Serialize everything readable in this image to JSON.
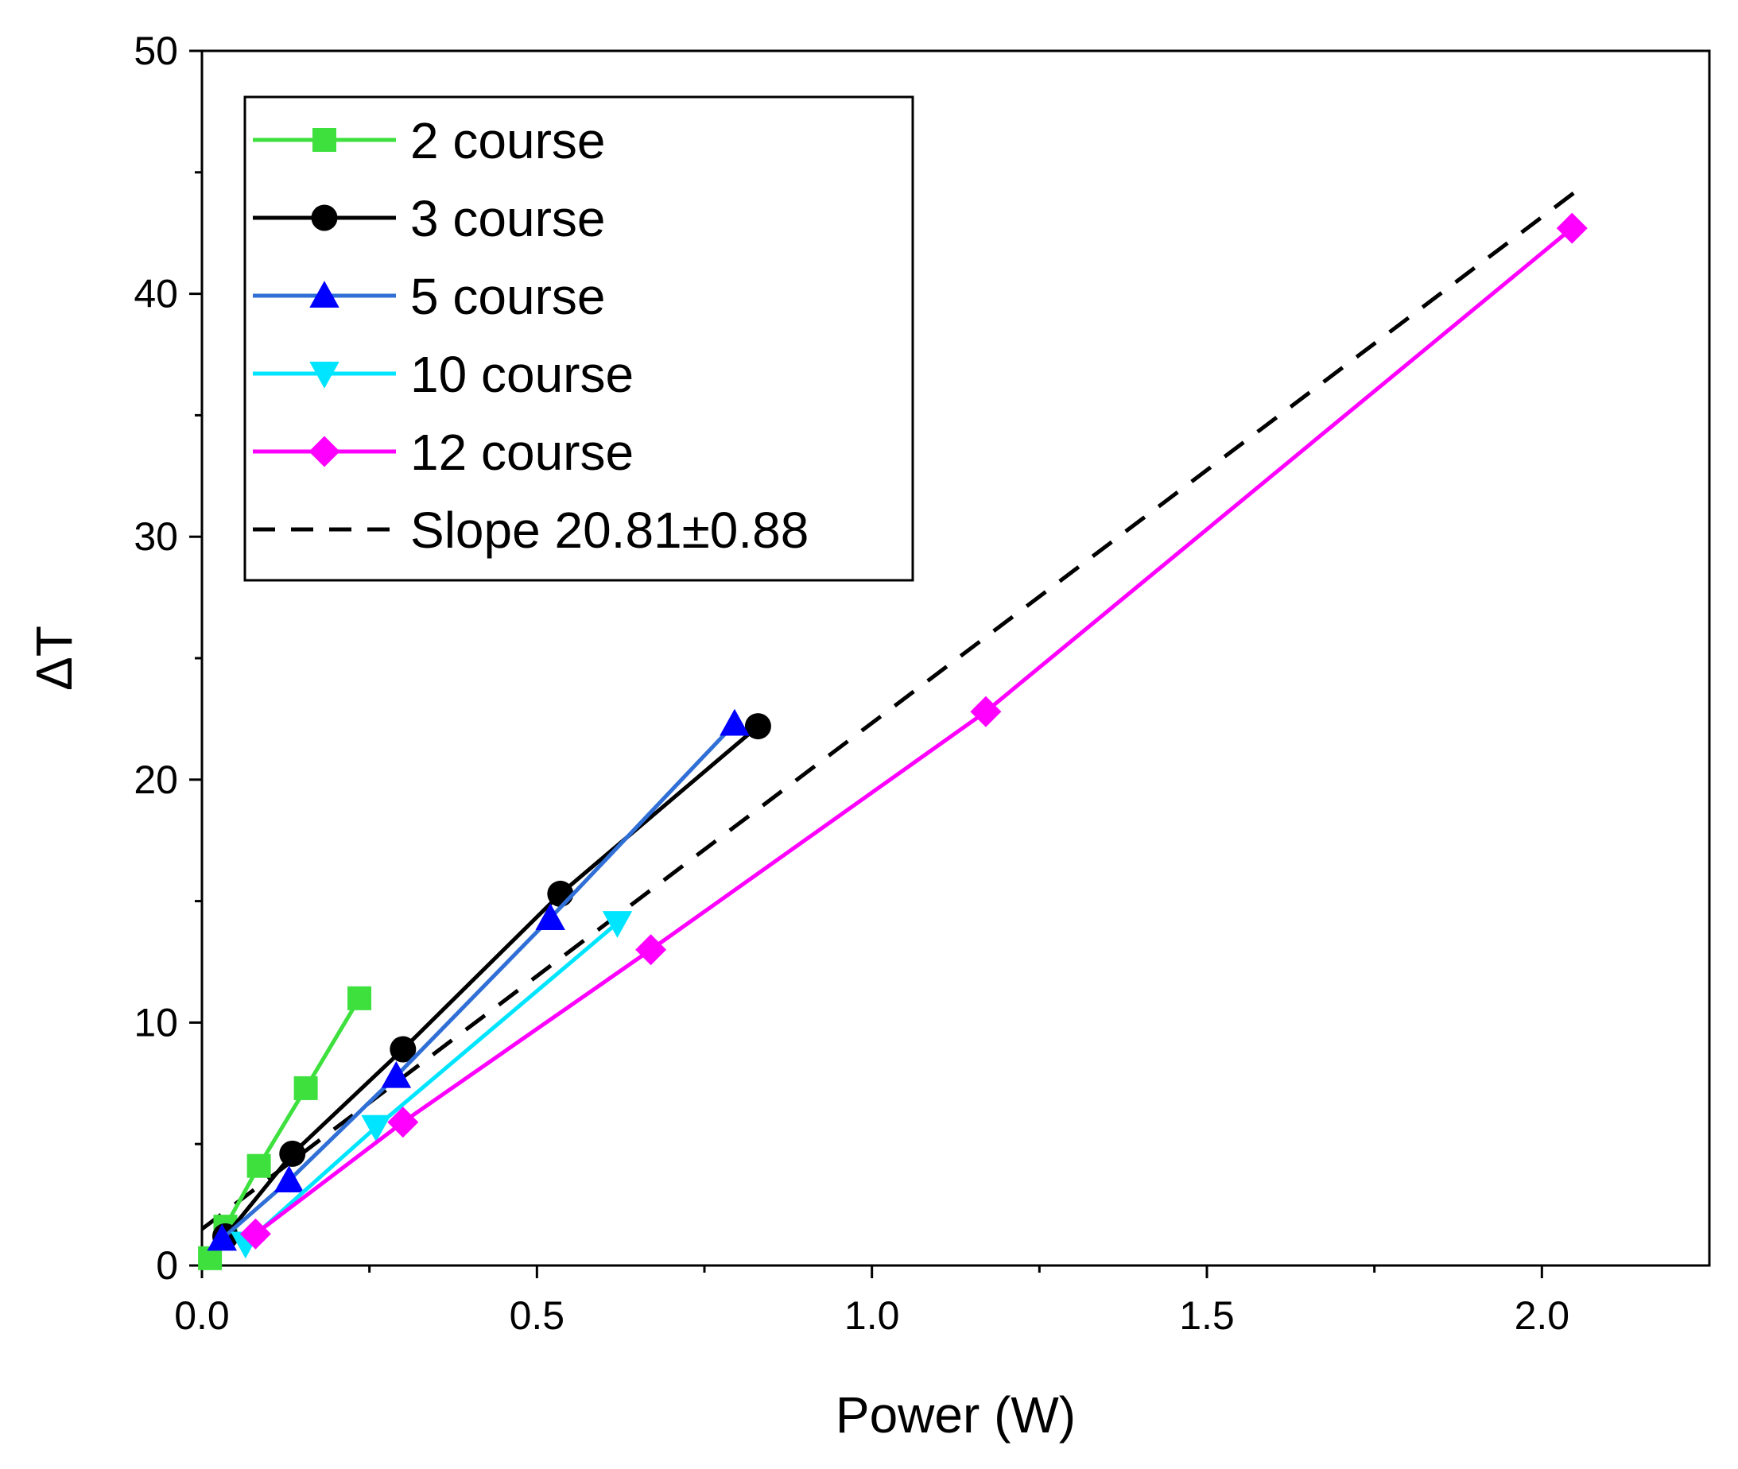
{
  "chart_data": {
    "type": "line",
    "title": "",
    "xlabel": "Power (W)",
    "ylabel": "ΔT",
    "xlim": [
      0,
      2.25
    ],
    "ylim": [
      0,
      50
    ],
    "x_ticks": [
      "0.0",
      "0.5",
      "1.0",
      "1.5",
      "2.0"
    ],
    "x_tick_values": [
      0,
      0.5,
      1.0,
      1.5,
      2.0
    ],
    "y_ticks": [
      "0",
      "10",
      "20",
      "30",
      "40",
      "50"
    ],
    "y_tick_values": [
      0,
      10,
      20,
      30,
      40,
      50
    ],
    "legend_position": "top-left",
    "series": [
      {
        "name": "2 course",
        "color": "#3ee03e",
        "marker": "square",
        "x": [
          0.012,
          0.035,
          0.085,
          0.155,
          0.235
        ],
        "y": [
          0.3,
          1.6,
          4.1,
          7.3,
          11.0
        ]
      },
      {
        "name": "3 course",
        "color": "#000000",
        "marker": "circle",
        "x": [
          0.035,
          0.135,
          0.3,
          0.535,
          0.83
        ],
        "y": [
          1.2,
          4.6,
          8.9,
          15.3,
          22.2
        ]
      },
      {
        "name": "5 course",
        "color": "#2f6fd6",
        "marker_color": "#0000ff",
        "marker": "triangle-up",
        "x": [
          0.03,
          0.13,
          0.29,
          0.52,
          0.795
        ],
        "y": [
          1.1,
          3.5,
          7.8,
          14.3,
          22.3
        ]
      },
      {
        "name": "10 course",
        "color": "#00e5ff",
        "marker": "triangle-down",
        "x": [
          0.065,
          0.26,
          0.62
        ],
        "y": [
          0.9,
          5.7,
          14.1
        ]
      },
      {
        "name": "12 course",
        "color": "#ff00ff",
        "marker": "diamond",
        "x": [
          0.08,
          0.3,
          0.67,
          1.17,
          2.045
        ],
        "y": [
          1.3,
          5.9,
          13.0,
          22.8,
          42.7
        ]
      }
    ],
    "fit_line": {
      "name": "Slope 20.81±0.88",
      "color": "#000000",
      "style": "dashed",
      "x": [
        0.0,
        2.05
      ],
      "y": [
        1.5,
        44.2
      ]
    }
  }
}
